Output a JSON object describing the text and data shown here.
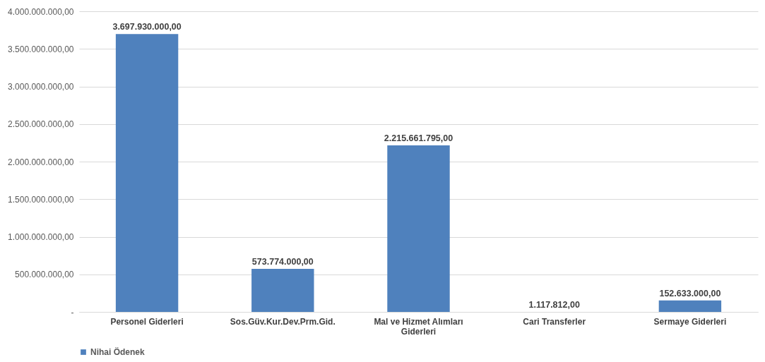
{
  "chart_data": {
    "type": "bar",
    "categories": [
      "Personel Giderleri",
      "Sos.Güv.Kur.Dev.Prm.Gid.",
      "Mal ve Hizmet Alımları Giderleri",
      "Cari Transferler",
      "Sermaye Giderleri"
    ],
    "series": [
      {
        "name": "Nihai Ödenek",
        "color": "#4f81bd",
        "values": [
          3697930000,
          573774000,
          2215661795,
          1117812,
          152633000
        ],
        "value_labels": [
          "3.697.930.000,00",
          "573.774.000,00",
          "2.215.661.795,00",
          "1.117.812,00",
          "152.633.000,00"
        ]
      }
    ],
    "ylim": [
      0,
      4000000000
    ],
    "yticks": [
      {
        "value": 0,
        "label": "-"
      },
      {
        "value": 500000000,
        "label": "500.000.000,00"
      },
      {
        "value": 1000000000,
        "label": "1.000.000.000,00"
      },
      {
        "value": 1500000000,
        "label": "1.500.000.000,00"
      },
      {
        "value": 2000000000,
        "label": "2.000.000.000,00"
      },
      {
        "value": 2500000000,
        "label": "2.500.000.000,00"
      },
      {
        "value": 3000000000,
        "label": "3.000.000.000,00"
      },
      {
        "value": 3500000000,
        "label": "3.500.000.000,00"
      },
      {
        "value": 4000000000,
        "label": "4.000.000.000,00"
      }
    ],
    "grid": "y",
    "legend": "bottom"
  }
}
